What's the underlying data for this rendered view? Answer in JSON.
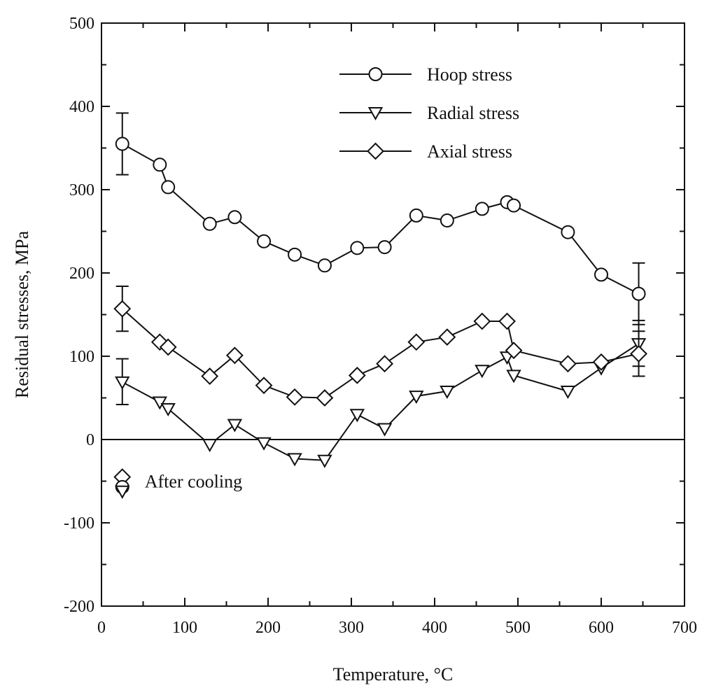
{
  "chart_data": {
    "type": "line",
    "title": "",
    "xlabel": "Temperature, °C",
    "ylabel": "Residual stresses, MPa",
    "xlim": [
      0,
      700
    ],
    "ylim": [
      -200,
      500
    ],
    "xticks": [
      0,
      100,
      200,
      300,
      400,
      500,
      600,
      700
    ],
    "yticks": [
      -200,
      -100,
      0,
      100,
      200,
      300,
      400,
      500
    ],
    "grid": false,
    "legend_position": "top-right",
    "reference_line_y": 0,
    "series": [
      {
        "name": "Hoop stress",
        "marker": "circle",
        "x": [
          25,
          70,
          80,
          130,
          160,
          195,
          232,
          268,
          307,
          340,
          378,
          415,
          457,
          487,
          495,
          560,
          600,
          645
        ],
        "y": [
          355,
          330,
          303,
          259,
          267,
          238,
          222,
          209,
          230,
          231,
          269,
          263,
          277,
          285,
          281,
          249,
          198,
          175
        ],
        "error_bars": [
          {
            "x": 25,
            "low": 318,
            "high": 392
          },
          {
            "x": 645,
            "low": 138,
            "high": 212
          }
        ]
      },
      {
        "name": "Radial stress",
        "marker": "triangle-down",
        "x": [
          25,
          70,
          80,
          130,
          160,
          195,
          232,
          268,
          307,
          340,
          378,
          415,
          457,
          487,
          495,
          560,
          600,
          645
        ],
        "y": [
          69,
          45,
          37,
          -6,
          18,
          -4,
          -23,
          -25,
          30,
          13,
          52,
          58,
          83,
          99,
          77,
          58,
          86,
          115
        ],
        "error_bars": [
          {
            "x": 25,
            "low": 42,
            "high": 97
          },
          {
            "x": 645,
            "low": 88,
            "high": 143
          }
        ]
      },
      {
        "name": "Axial stress",
        "marker": "diamond",
        "x": [
          25,
          70,
          80,
          130,
          160,
          195,
          232,
          268,
          307,
          340,
          378,
          415,
          457,
          487,
          495,
          560,
          600,
          645
        ],
        "y": [
          157,
          117,
          111,
          76,
          101,
          65,
          51,
          50,
          77,
          91,
          117,
          123,
          142,
          142,
          107,
          91,
          93,
          103
        ],
        "error_bars": [
          {
            "x": 25,
            "low": 130,
            "high": 184
          },
          {
            "x": 645,
            "low": 76,
            "high": 130
          }
        ]
      }
    ],
    "annotation": {
      "text": "After cooling",
      "markers": [
        {
          "marker": "diamond",
          "x": 25,
          "y": -45
        },
        {
          "marker": "circle",
          "x": 25,
          "y": -57
        },
        {
          "marker": "triangle-down",
          "x": 25,
          "y": -62
        }
      ]
    }
  }
}
